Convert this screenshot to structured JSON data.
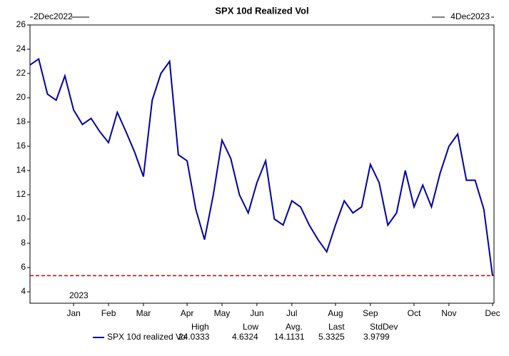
{
  "chart_data": {
    "type": "line",
    "title": "SPX 10d Realized Vol",
    "start_label": "2Dec2022",
    "end_label": "4Dec2023",
    "year_label": "2023",
    "categories": [
      null,
      null,
      null,
      null,
      null,
      "Jan",
      null,
      null,
      null,
      "Feb",
      null,
      null,
      null,
      "Mar",
      null,
      null,
      null,
      null,
      "Apr",
      null,
      null,
      null,
      "May",
      null,
      null,
      null,
      "Jun",
      null,
      null,
      null,
      "Jul",
      null,
      null,
      null,
      null,
      "Aug",
      null,
      null,
      null,
      "Sep",
      null,
      null,
      null,
      null,
      "Oct",
      null,
      null,
      null,
      "Nov",
      null,
      null,
      null,
      null,
      "Dec"
    ],
    "series": [
      {
        "name": "SPX 10d realized Vol",
        "color": "#0000a8",
        "values": [
          22.7,
          23.2,
          20.3,
          19.8,
          21.8,
          19.0,
          17.8,
          18.3,
          17.2,
          16.3,
          18.8,
          17.2,
          15.5,
          13.5,
          19.8,
          22.0,
          23.0,
          15.3,
          14.8,
          10.8,
          8.3,
          12.0,
          16.5,
          15.0,
          12.0,
          10.5,
          13.0,
          14.8,
          10.0,
          9.5,
          11.5,
          11.0,
          9.5,
          8.3,
          7.3,
          9.5,
          11.5,
          10.5,
          11.0,
          14.5,
          13.0,
          9.5,
          10.5,
          14.0,
          11.0,
          12.8,
          11.0,
          13.8,
          16.0,
          17.0,
          13.2,
          13.2,
          10.8,
          5.3
        ]
      }
    ],
    "ylim": [
      3.06,
      26
    ],
    "yticks": [
      4,
      6,
      8,
      10,
      12,
      14,
      16,
      18,
      20,
      22,
      24,
      26
    ],
    "stats": {
      "headers": [
        "High",
        "Low",
        "Avg.",
        "Last",
        "StdDev"
      ],
      "values": [
        24.0333,
        4.6324,
        14.1131,
        5.3325,
        3.9799
      ]
    },
    "reference_line_color": "#cc0000"
  }
}
